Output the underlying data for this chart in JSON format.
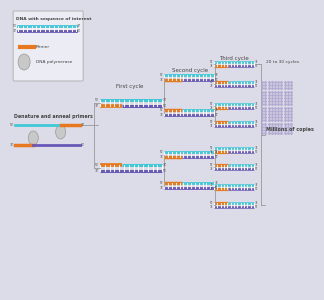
{
  "bg_color": "#dcdce8",
  "cyan_color": "#40c8d8",
  "purple_color": "#6858b8",
  "orange_color": "#e87820",
  "white_color": "#ffffff",
  "light_purple": "#b8b0d8",
  "gray_color": "#999999",
  "text_color": "#444444",
  "legend_bg": "#ececf4",
  "legend_border": "#aaaaaa",
  "first_cycle_label": "First cycle",
  "second_cycle_label": "Second cycle",
  "third_cycle_label": "Third cycle",
  "more_cycles_label": "20 to 30 cycles",
  "millions_label": "Millions of copies",
  "dna_label": "DNA with sequence of interest",
  "primer_label": "Primer",
  "polymerase_label": "DNA polymerase",
  "denature_label": "Denature and anneal primers",
  "dots_cols": 11,
  "dots_rows": 17,
  "dot_color": "#b0a8d0"
}
